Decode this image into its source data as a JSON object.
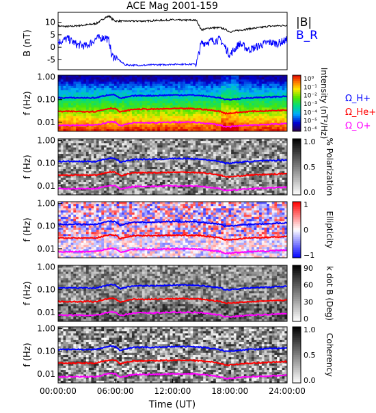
{
  "title": "ACE Mag 2001-159",
  "x_axis": {
    "label": "Time (UT)",
    "ticks": [
      "00:00:00",
      "06:00:00",
      "12:00:00",
      "18:00:00",
      "24:00:00"
    ]
  },
  "colors": {
    "B_total": "#000000",
    "B_R": "#0000ff",
    "omega_H": "#0000ff",
    "omega_He": "#ff0000",
    "omega_O": "#ff00ff"
  },
  "chart_data": [
    {
      "type": "line",
      "panel": "magnetic-field",
      "ylabel": "B (nT)",
      "ylim": [
        -9,
        14
      ],
      "yticks": [
        "10",
        "5",
        "0",
        "-5"
      ],
      "legend": [
        "|B|",
        "B_R"
      ],
      "x_hours": [
        0,
        1,
        2,
        3,
        4,
        5,
        5.4,
        5.6,
        6,
        7,
        8,
        9,
        10,
        11,
        12,
        13,
        14,
        14.5,
        15,
        16,
        17,
        17.5,
        18,
        19,
        20,
        21,
        22,
        23,
        24
      ],
      "series": [
        {
          "name": "|B|",
          "values": [
            8.5,
            8.3,
            8.6,
            9.0,
            9.5,
            12.0,
            12.5,
            11.5,
            10.5,
            10.5,
            10.5,
            10.5,
            10.7,
            10.8,
            11.0,
            10.8,
            10.9,
            10.8,
            7.0,
            7.8,
            7.8,
            7.2,
            6.2,
            6.8,
            7.4,
            7.8,
            8.4,
            8.6,
            8.8
          ]
        },
        {
          "name": "B_R",
          "values": [
            2.0,
            3.5,
            1.0,
            0.5,
            3.5,
            4.0,
            2.0,
            -3.5,
            -4.0,
            -7.0,
            -7.2,
            -7.2,
            -7.0,
            -7.0,
            -6.8,
            -6.8,
            -6.8,
            -6.5,
            1.5,
            2.5,
            3.0,
            0.0,
            -3.0,
            1.5,
            -1.0,
            0.5,
            2.0,
            1.5,
            3.0
          ]
        }
      ]
    },
    {
      "type": "heatmap",
      "panel": "intensity",
      "ylabel": "f (Hz)",
      "yticks": [
        "1.00",
        "0.10",
        "0.01"
      ],
      "ylim": [
        0.004,
        1.0
      ],
      "yscale": "log",
      "colorbar_label": "Intensity (nT²/Hz)",
      "colorbar_ticks": [
        "10⁰",
        "10⁻¹",
        "10⁻²",
        "10⁻³",
        "10⁻⁴",
        "10⁻⁵",
        "10⁻⁶"
      ],
      "legend": [
        "Ω_H+",
        "Ω_He+",
        "Ω_O+"
      ]
    },
    {
      "type": "heatmap",
      "panel": "polarization",
      "ylabel": "f (Hz)",
      "yticks": [
        "1.00",
        "0.10",
        "0.01"
      ],
      "colorbar_label": "% Polarization",
      "colorbar_ticks": [
        "1.0",
        "0.5",
        "0.0"
      ]
    },
    {
      "type": "heatmap",
      "panel": "ellipticity",
      "ylabel": "f (Hz)",
      "yticks": [
        "1.00",
        "0.10",
        "0.01"
      ],
      "colorbar_label": "Ellipticity",
      "colorbar_ticks": [
        "1",
        "0",
        "−1"
      ]
    },
    {
      "type": "heatmap",
      "panel": "k-dot-b",
      "ylabel": "f (Hz)",
      "yticks": [
        "1.00",
        "0.10",
        "0.01"
      ],
      "colorbar_label": "k dot B (Deg)",
      "colorbar_ticks": [
        "90",
        "60",
        "30",
        "0"
      ]
    },
    {
      "type": "heatmap",
      "panel": "coherency",
      "ylabel": "f (Hz)",
      "yticks": [
        "1.00",
        "0.10",
        "0.01"
      ],
      "colorbar_label": "Coherency",
      "colorbar_ticks": [
        "1.0",
        "0.5",
        "0.0"
      ]
    },
    {
      "type": "line",
      "panel": "gyrofrequency-traces",
      "x_hours": [
        0,
        2,
        4,
        5.5,
        6,
        6.5,
        8,
        10,
        12,
        14,
        15,
        17,
        17.5,
        18,
        20,
        22,
        24
      ],
      "series": [
        {
          "name": "Ω_H+",
          "values": [
            0.12,
            0.12,
            0.12,
            0.17,
            0.16,
            0.11,
            0.15,
            0.15,
            0.16,
            0.16,
            0.15,
            0.12,
            0.1,
            0.1,
            0.12,
            0.13,
            0.14
          ]
        },
        {
          "name": "Ω_He+",
          "values": [
            0.03,
            0.03,
            0.03,
            0.042,
            0.04,
            0.028,
            0.038,
            0.038,
            0.04,
            0.04,
            0.038,
            0.03,
            0.025,
            0.025,
            0.03,
            0.032,
            0.035
          ]
        },
        {
          "name": "Ω_O+",
          "values": [
            0.0075,
            0.0075,
            0.0075,
            0.0105,
            0.01,
            0.007,
            0.0095,
            0.0095,
            0.01,
            0.01,
            0.0095,
            0.0075,
            0.0063,
            0.0063,
            0.0075,
            0.008,
            0.0088
          ]
        }
      ]
    }
  ]
}
